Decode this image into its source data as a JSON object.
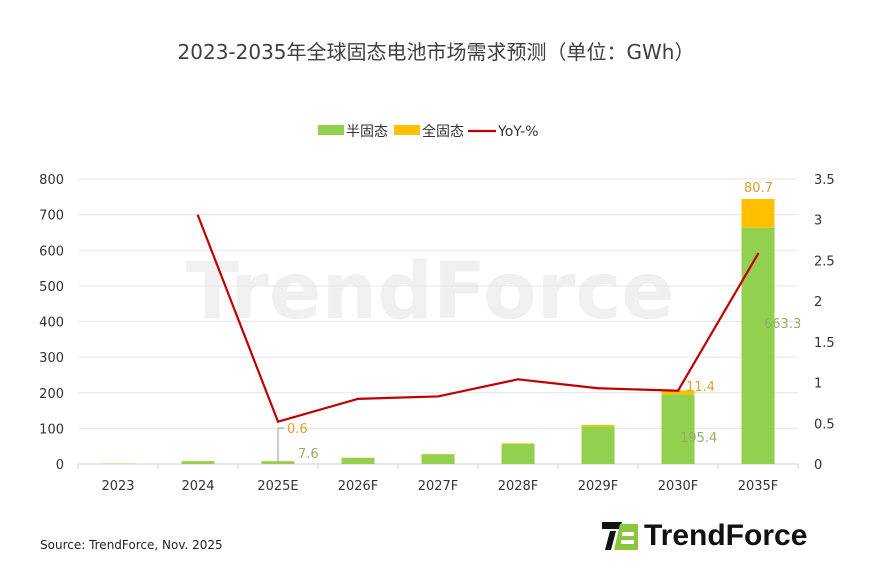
{
  "chart_data": {
    "type": "bar",
    "title": "2023-2035年全球固态电池市场需求预测（单位：GWh）",
    "categories": [
      "2023",
      "2024",
      "2025E",
      "2026F",
      "2027F",
      "2028F",
      "2029F",
      "2030F",
      "2035F"
    ],
    "series": [
      {
        "name": "半固态",
        "type": "bar",
        "axis": "left",
        "color": "#92D050",
        "values": [
          1,
          8,
          7.6,
          17,
          27,
          56,
          105,
          195.4,
          663.3
        ],
        "labels": [
          null,
          null,
          "7.6",
          null,
          null,
          null,
          null,
          "195.4",
          "663.3"
        ]
      },
      {
        "name": "全固态",
        "type": "bar",
        "axis": "left",
        "color": "#FFC000",
        "values": [
          0.3,
          0.5,
          0.6,
          0.8,
          1,
          2,
          5,
          11.4,
          80.7
        ],
        "labels": [
          null,
          null,
          "0.6",
          null,
          null,
          null,
          null,
          "11.4",
          "80.7"
        ]
      },
      {
        "name": "YoY-%",
        "type": "line",
        "axis": "right",
        "color": "#C00000",
        "values": [
          null,
          3.05,
          0.52,
          0.8,
          0.83,
          1.04,
          0.93,
          0.9,
          2.58
        ]
      }
    ],
    "left_axis": {
      "ylim": [
        0,
        800
      ],
      "ticks": [
        "0",
        "100",
        "200",
        "300",
        "400",
        "500",
        "600",
        "700",
        "800"
      ]
    },
    "right_axis": {
      "ylim": [
        0,
        3.5
      ],
      "ticks": [
        "0",
        "0.5",
        "1",
        "1.5",
        "2",
        "2.5",
        "3",
        "3.5"
      ]
    },
    "grid": true,
    "legend": "top-center",
    "source": "Source: TrendForce, Nov. 2025",
    "watermark": "TrendForce",
    "logo": "TrendForce"
  }
}
